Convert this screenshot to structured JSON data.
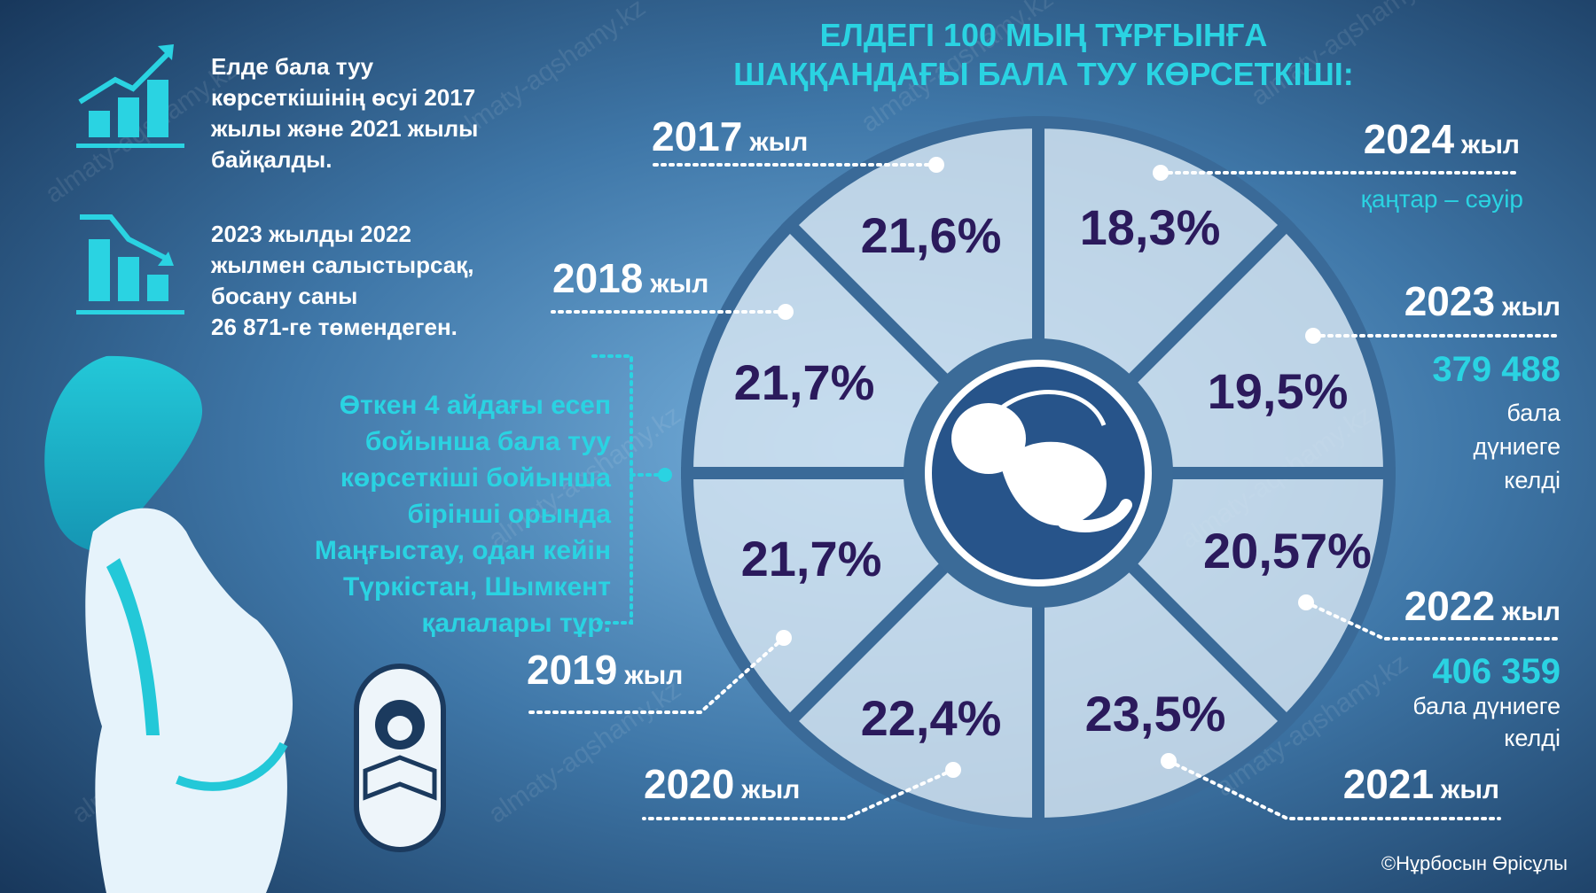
{
  "header": {
    "title": [
      "ЕЛДЕГІ 100 МЫҢ ТҰРҒЫНҒА",
      "ШАҚҚАНДАҒЫ БАЛА ТУУ КӨРСЕТКІШІ:"
    ]
  },
  "notes": [
    [
      "Елде бала туу",
      "көрсеткішінің өсуі 2017",
      "жылы және 2021 жылы",
      "байқалды."
    ],
    [
      "2023 жылды 2022",
      "жылмен салыстырсақ,",
      "босану саны",
      "26 871-ге төмендеген."
    ],
    [
      "Өткен 4 айдағы есеп",
      "бойынша бала туу",
      "көрсеткіші бойынша",
      "бірінші орында",
      "Маңғыстау, одан кейін",
      "Түркістан, Шымкент",
      "қалалары тұр."
    ]
  ],
  "segments": [
    {
      "year": "2017",
      "unit": "жыл",
      "value": "21,6%"
    },
    {
      "year": "2024",
      "unit": "жыл",
      "value": "18,3%",
      "note": "қаңтар – сәуір"
    },
    {
      "year": "2018",
      "unit": "жыл",
      "value": "21,7%"
    },
    {
      "year": "2023",
      "unit": "жыл",
      "value": "19,5%",
      "births": "379 488",
      "caption": [
        "бала",
        "дүниеге",
        "келді"
      ]
    },
    {
      "year": "2019",
      "unit": "жыл",
      "value": "21,7%"
    },
    {
      "year": "2022",
      "unit": "жыл",
      "value": "20,57%",
      "births": "406 359",
      "caption": [
        "бала дүниеге",
        "келді"
      ]
    },
    {
      "year": "2020",
      "unit": "жыл",
      "value": "22,4%"
    },
    {
      "year": "2021",
      "unit": "жыл",
      "value": "23,5%"
    }
  ],
  "watermark": "almaty-aqshamy.kz",
  "credit": "©Нұрбосын Өрісұлы"
}
